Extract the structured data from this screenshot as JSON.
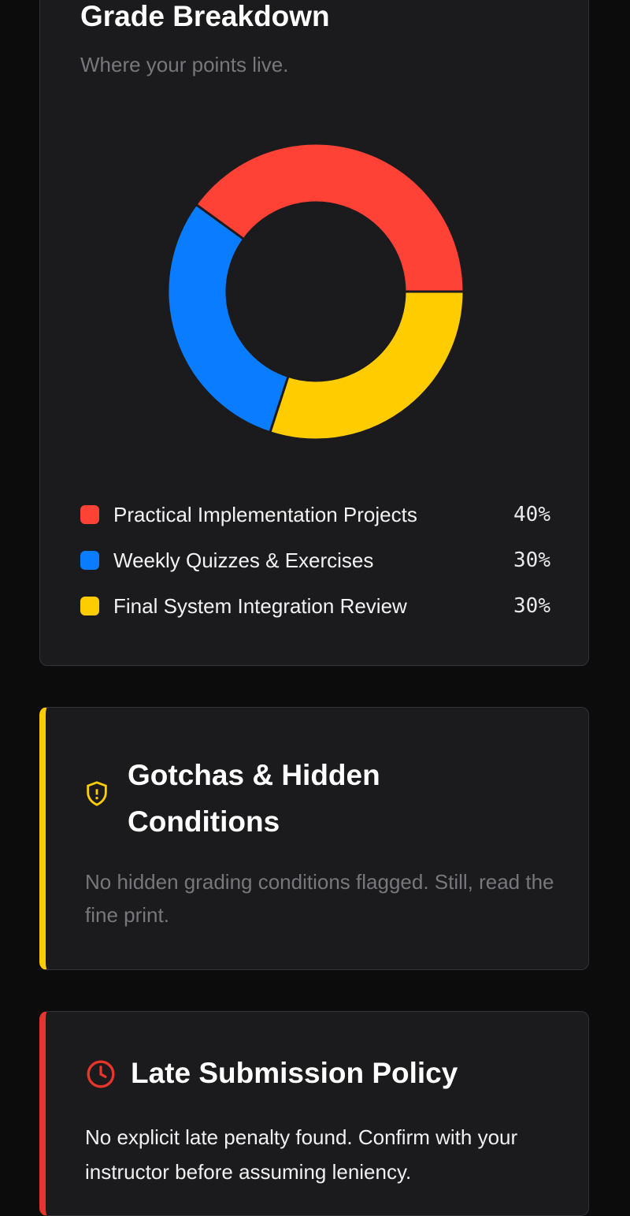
{
  "grade_breakdown": {
    "title": "Grade Breakdown",
    "subtitle": "Where your points live.",
    "chart": {
      "type": "donut",
      "categories": [
        "Practical Implementation Projects",
        "Weekly Quizzes & Exercises",
        "Final System Integration Review"
      ],
      "values": [
        40,
        30,
        30
      ],
      "value_labels": [
        "40%",
        "30%",
        "30%"
      ],
      "colors": [
        "#ff4136",
        "#0a7cff",
        "#ffcc00"
      ]
    }
  },
  "gotchas": {
    "title": "Gotchas & Hidden Conditions",
    "body": "No hidden grading conditions flagged. Still, read the fine print."
  },
  "late_policy": {
    "title": "Late Submission Policy",
    "body": "No explicit late penalty found. Confirm with your instructor before assuming leniency."
  }
}
